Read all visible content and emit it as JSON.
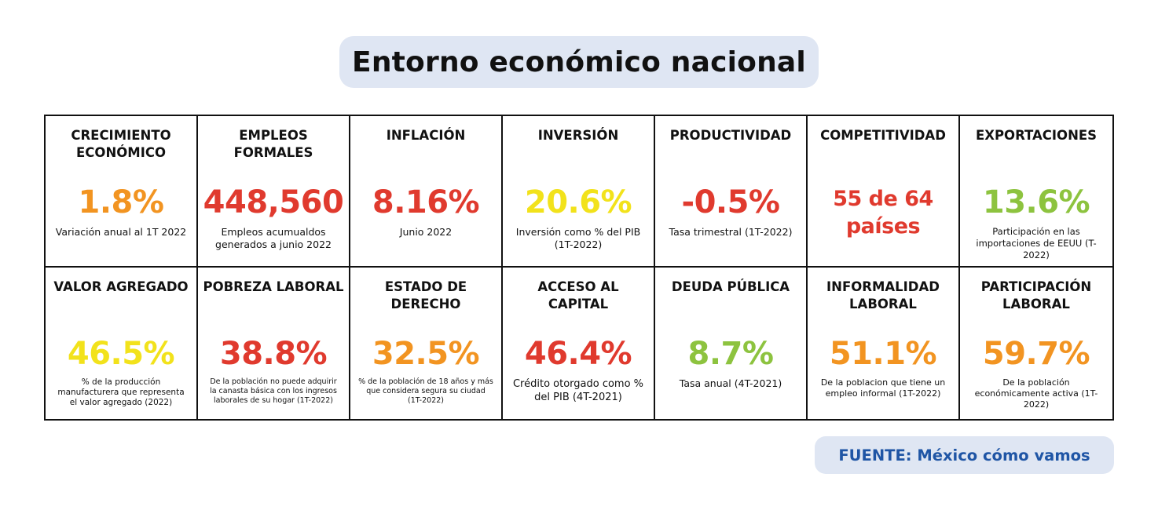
{
  "title": "Entorno económico nacional",
  "source": "FUENTE: México cómo vamos",
  "colors": {
    "orange": "#f29421",
    "red": "#e03a2e",
    "yellow": "#f2e21b",
    "green": "#8dc33f",
    "pill_bg": "#dfe6f3",
    "source_text": "#1f55a5"
  },
  "row1": [
    {
      "label": "CRECIMIENTO ECONÓMICO",
      "value": "1.8%",
      "color": "#f29421",
      "desc": "Variación anual al 1T 2022"
    },
    {
      "label": "EMPLEOS FORMALES",
      "value": "448,560",
      "color": "#e03a2e",
      "desc": "Empleos acumualdos generados a junio 2022"
    },
    {
      "label": "INFLACIÓN",
      "value": "8.16%",
      "color": "#e03a2e",
      "desc": "Junio 2022"
    },
    {
      "label": "INVERSIÓN",
      "value": "20.6%",
      "color": "#f2e21b",
      "desc": "Inversión como % del PIB (1T-2022)"
    },
    {
      "label": "PRODUCTIVIDAD",
      "value": "-0.5%",
      "color": "#e03a2e",
      "desc": "Tasa trimestral (1T-2022)"
    },
    {
      "label": "COMPETITIVIDAD",
      "value": "55 de 64 países",
      "color": "#e03a2e",
      "desc": ""
    },
    {
      "label": "EXPORTACIONES",
      "value": "13.6%",
      "color": "#8dc33f",
      "desc": "Participación en las importaciones de EEUU (T-2022)"
    }
  ],
  "row2": [
    {
      "label": "VALOR AGREGADO",
      "value": "46.5%",
      "color": "#f2e21b",
      "desc": "% de la producción manufacturera que representa el valor agregado (2022)"
    },
    {
      "label": "POBREZA LABORAL",
      "value": "38.8%",
      "color": "#e03a2e",
      "desc": "De la población no puede adquirir la canasta básica con los ingresos laborales de su hogar (1T-2022)"
    },
    {
      "label": "ESTADO DE DERECHO",
      "value": "32.5%",
      "color": "#f29421",
      "desc": "% de la población de 18 años y más que considera segura su ciudad (1T-2022)"
    },
    {
      "label": "ACCESO AL CAPITAL",
      "value": "46.4%",
      "color": "#e03a2e",
      "desc": "Crédito otorgado como % del PIB (4T-2021)"
    },
    {
      "label": "DEUDA PÚBLICA",
      "value": "8.7%",
      "color": "#8dc33f",
      "desc": "Tasa anual (4T-2021)"
    },
    {
      "label": "INFORMALIDAD LABORAL",
      "value": "51.1%",
      "color": "#f29421",
      "desc": "De la poblacion que tiene un empleo informal (1T-2022)"
    },
    {
      "label": "PARTICIPACIÓN LABORAL",
      "value": "59.7%",
      "color": "#f29421",
      "desc": "De la población económicamente activa (1T-2022)"
    }
  ]
}
